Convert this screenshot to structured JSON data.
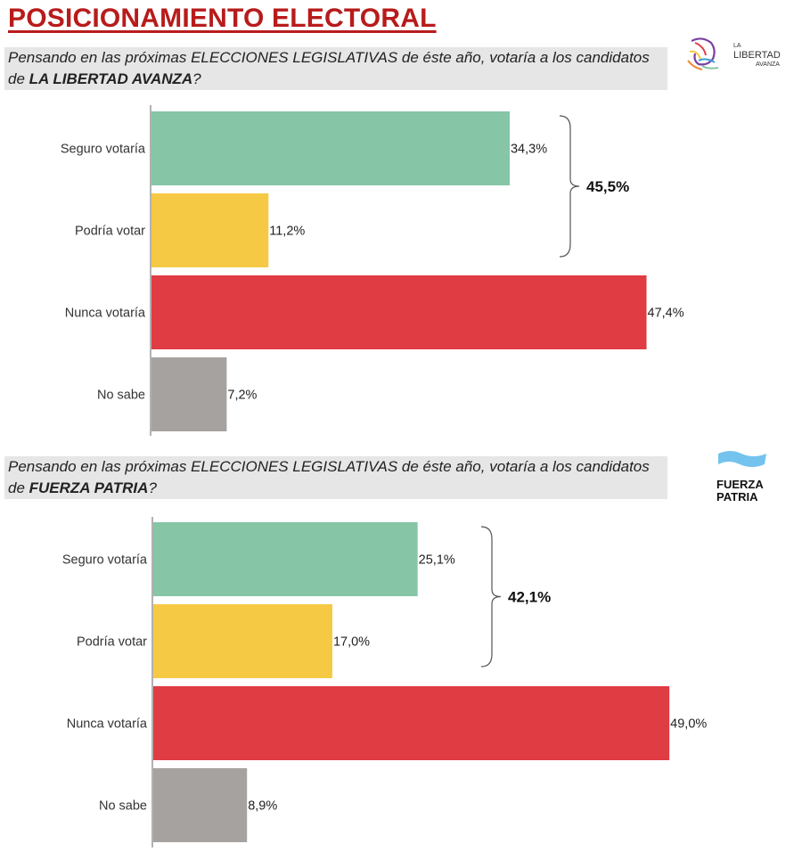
{
  "title": "POSICIONAMIENTO ELECTORAL",
  "colors": {
    "seguro": "#86c5a6",
    "podria": "#f6c944",
    "nunca": "#e03c43",
    "nosabe": "#a5a2a0",
    "title": "#b81b1b"
  },
  "sections": [
    {
      "question_prefix": "Pensando en las próximas ELECCIONES LEGISLATIVAS de éste año, votaría a los candidatos de ",
      "party": "LA LIBERTAD AVANZA",
      "question_suffix": "?",
      "logo": {
        "line1": "LA",
        "line2": "LIBERTAD",
        "line3": "AVANZA",
        "icon": "lion-icon"
      }
    },
    {
      "question_prefix": "Pensando en las próximas ELECCIONES LEGISLATIVAS de éste año, votaría a los candidatos de ",
      "party": "FUERZA PATRIA",
      "question_suffix": "?",
      "logo": {
        "line1": "FUERZA",
        "line2": "PATRIA",
        "icon": "flag-icon"
      }
    }
  ],
  "chart_data": [
    {
      "type": "bar",
      "orientation": "horizontal",
      "categories": [
        "Seguro votaría",
        "Podría votar",
        "Nunca votaría",
        "No sabe"
      ],
      "values": [
        34.3,
        11.2,
        47.4,
        7.2
      ],
      "labels": [
        "34,3%",
        "11,2%",
        "47,4%",
        "7,2%"
      ],
      "bracket_total": "45,5%",
      "xlim": [
        0,
        50
      ]
    },
    {
      "type": "bar",
      "orientation": "horizontal",
      "categories": [
        "Seguro votaría",
        "Podría votar",
        "Nunca votaría",
        "No sabe"
      ],
      "values": [
        25.1,
        17.0,
        49.0,
        8.9
      ],
      "labels": [
        "25,1%",
        "17,0%",
        "49,0%",
        "8,9%"
      ],
      "bracket_total": "42,1%",
      "xlim": [
        0,
        50
      ]
    }
  ]
}
